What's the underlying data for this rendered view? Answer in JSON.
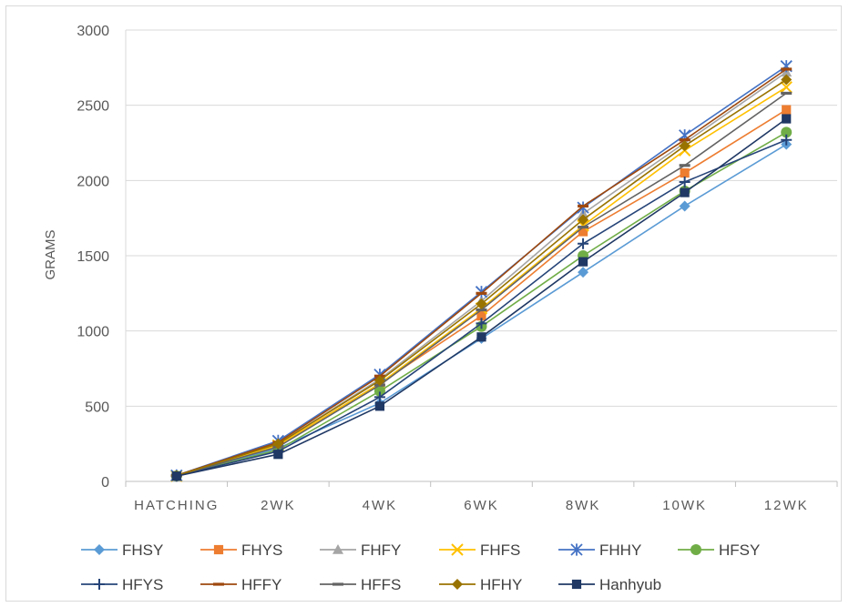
{
  "chart_data": {
    "type": "line",
    "title": "",
    "xlabel": "",
    "ylabel": "GRAMS",
    "ylim": [
      0,
      3000
    ],
    "yticks": [
      0,
      500,
      1000,
      1500,
      2000,
      2500,
      3000
    ],
    "grid": "horizontal",
    "legend_position": "bottom",
    "categories": [
      "HATCHING",
      "2WK",
      "4WK",
      "6WK",
      "8WK",
      "10WK",
      "12WK"
    ],
    "series": [
      {
        "name": "FHSY",
        "color": "#5b9bd5",
        "marker": "diamond",
        "values": [
          35,
          220,
          520,
          950,
          1390,
          1830,
          2240
        ]
      },
      {
        "name": "FHYS",
        "color": "#ed7d31",
        "marker": "square",
        "values": [
          38,
          240,
          650,
          1100,
          1660,
          2050,
          2470
        ]
      },
      {
        "name": "FHFY",
        "color": "#a5a5a5",
        "marker": "triangle",
        "values": [
          38,
          250,
          680,
          1200,
          1780,
          2250,
          2720
        ]
      },
      {
        "name": "FHFS",
        "color": "#ffc000",
        "marker": "x",
        "values": [
          36,
          240,
          650,
          1150,
          1700,
          2200,
          2620
        ]
      },
      {
        "name": "FHHY",
        "color": "#4472c4",
        "marker": "star",
        "values": [
          40,
          270,
          710,
          1260,
          1820,
          2300,
          2760
        ]
      },
      {
        "name": "HFSY",
        "color": "#70ad47",
        "marker": "circle",
        "values": [
          36,
          210,
          600,
          1030,
          1500,
          1930,
          2320
        ]
      },
      {
        "name": "HFYS",
        "color": "#264478",
        "marker": "plus",
        "values": [
          35,
          200,
          560,
          1050,
          1580,
          1990,
          2270
        ]
      },
      {
        "name": "HFFY",
        "color": "#9e480e",
        "marker": "dash",
        "values": [
          40,
          260,
          700,
          1250,
          1830,
          2270,
          2740
        ]
      },
      {
        "name": "HFFS",
        "color": "#636363",
        "marker": "dash",
        "values": [
          37,
          230,
          640,
          1140,
          1690,
          2100,
          2580
        ]
      },
      {
        "name": "HFHY",
        "color": "#997300",
        "marker": "diamond",
        "values": [
          38,
          250,
          670,
          1180,
          1740,
          2230,
          2670
        ]
      },
      {
        "name": "Hanhyub",
        "color": "#1f3864",
        "marker": "square",
        "values": [
          35,
          180,
          500,
          960,
          1460,
          1920,
          2410
        ]
      }
    ]
  }
}
